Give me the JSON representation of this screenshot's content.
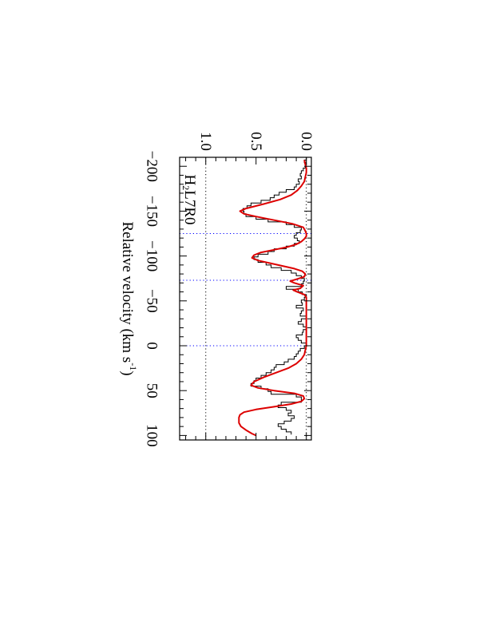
{
  "chart_data": {
    "type": "line",
    "orientation": "rotated 90 degrees clockwise",
    "xlabel": "Relative velocity (km s",
    "xlabel_superscript": "-1",
    "xlabel_suffix": ")",
    "ylabel": "",
    "annotation": "H",
    "annotation_subscript": "2",
    "annotation_suffix": "L7R0",
    "xlim": [
      -210,
      105
    ],
    "ylim": [
      -0.05,
      1.26
    ],
    "x_ticks": [
      {
        "value": -200,
        "label": "−200"
      },
      {
        "value": -150,
        "label": "−150"
      },
      {
        "value": -100,
        "label": "−100"
      },
      {
        "value": -50,
        "label": "−50"
      },
      {
        "value": 0,
        "label": "0"
      },
      {
        "value": 50,
        "label": "50"
      },
      {
        "value": 100,
        "label": "100"
      }
    ],
    "y_ticks": [
      {
        "value": 0.0,
        "label": "0.0"
      },
      {
        "value": 0.5,
        "label": "0.5"
      },
      {
        "value": 1.0,
        "label": "1.0"
      }
    ],
    "reference_lines": {
      "horizontal": [
        0.0,
        1.0
      ],
      "vertical": [
        -125,
        -73,
        0
      ],
      "horizontal_color": "#000000",
      "vertical_color": "#0000ff"
    },
    "series": [
      {
        "style": "histogram",
        "color": "#000000",
        "x": [
          -210,
          -207,
          -204,
          -201,
          -198,
          -195,
          -192,
          -189,
          -186,
          -183,
          -180,
          -177,
          -174,
          -171,
          -168,
          -165,
          -162,
          -159,
          -156,
          -153,
          -150,
          -147,
          -144,
          -141,
          -138,
          -135,
          -132,
          -129,
          -126,
          -123,
          -120,
          -117,
          -114,
          -111,
          -108,
          -105,
          -102,
          -99,
          -96,
          -93,
          -90,
          -87,
          -84,
          -81,
          -78,
          -75,
          -72,
          -69,
          -66,
          -63,
          -60,
          -57,
          -54,
          -51,
          -48,
          -45,
          -42,
          -39,
          -36,
          -33,
          -30,
          -27,
          -24,
          -21,
          -18,
          -15,
          -12,
          -9,
          -6,
          -3,
          0,
          3,
          6,
          9,
          12,
          15,
          18,
          21,
          24,
          27,
          30,
          33,
          36,
          39,
          42,
          45,
          48,
          51,
          54,
          57,
          60,
          63,
          66,
          69,
          72,
          75,
          78,
          81,
          84,
          87,
          90,
          93,
          96
        ],
        "values": [
          0.0,
          0.02,
          0.0,
          0.01,
          0.03,
          0.05,
          0.06,
          0.05,
          0.08,
          0.07,
          0.1,
          0.12,
          0.2,
          0.27,
          0.32,
          0.36,
          0.45,
          0.55,
          0.59,
          0.63,
          0.62,
          0.6,
          0.5,
          0.38,
          0.2,
          0.12,
          0.05,
          0.06,
          0.1,
          0.12,
          0.09,
          0.07,
          0.12,
          0.2,
          0.32,
          0.38,
          0.48,
          0.52,
          0.48,
          0.4,
          0.35,
          0.25,
          0.15,
          0.1,
          0.05,
          0.02,
          0.03,
          0.05,
          0.2,
          0.08,
          0.04,
          0.0,
          0.02,
          0.05,
          0.04,
          0.1,
          0.03,
          0.05,
          0.06,
          0.0,
          0.05,
          0.08,
          0.03,
          0.0,
          0.03,
          0.04,
          0.1,
          0.08,
          0.05,
          0.0,
          0.02,
          0.06,
          0.08,
          0.1,
          0.12,
          0.18,
          0.22,
          0.3,
          0.32,
          0.35,
          0.4,
          0.45,
          0.5,
          0.52,
          0.55,
          0.45,
          0.38,
          0.35,
          0.1,
          0.05,
          0.05,
          0.25,
          0.28,
          0.2,
          0.15,
          0.18,
          0.12,
          0.15,
          0.22,
          0.28,
          0.25,
          0.2,
          0.15
        ]
      },
      {
        "style": "smooth",
        "color": "#dd0000",
        "x": [
          -207,
          -202,
          -198,
          -193,
          -188,
          -183,
          -178,
          -173,
          -168,
          -163,
          -158,
          -153,
          -150,
          -147,
          -144,
          -140,
          -136,
          -132,
          -128,
          -125,
          -122,
          -119,
          -116,
          -113,
          -110,
          -107,
          -104,
          -101,
          -98,
          -95,
          -92,
          -89,
          -86,
          -83,
          -80,
          -77,
          -74,
          -72,
          -70,
          -67,
          -64,
          -62,
          -60,
          -57,
          -54,
          -50,
          -45,
          -40,
          -35,
          -30,
          -25,
          -20,
          -15,
          -10,
          -5,
          0,
          5,
          10,
          15,
          20,
          25,
          30,
          35,
          40,
          44,
          47,
          50,
          53,
          56,
          59,
          62,
          65,
          68,
          71,
          74,
          77,
          80,
          83,
          86,
          90,
          94,
          98,
          100
        ],
        "values": [
          0.02,
          0.01,
          0.0,
          0.0,
          0.01,
          0.02,
          0.05,
          0.09,
          0.15,
          0.26,
          0.42,
          0.6,
          0.66,
          0.62,
          0.5,
          0.32,
          0.14,
          0.03,
          0.01,
          0.0,
          0.0,
          0.02,
          0.05,
          0.1,
          0.19,
          0.32,
          0.45,
          0.52,
          0.54,
          0.48,
          0.36,
          0.24,
          0.12,
          0.04,
          0.01,
          0.02,
          0.1,
          0.16,
          0.12,
          0.03,
          0.06,
          0.13,
          0.09,
          0.02,
          0.0,
          0.0,
          0.0,
          0.0,
          0.0,
          0.0,
          0.0,
          0.0,
          0.0,
          0.0,
          0.0,
          0.0,
          0.01,
          0.02,
          0.05,
          0.1,
          0.18,
          0.3,
          0.42,
          0.52,
          0.55,
          0.48,
          0.32,
          0.12,
          0.03,
          0.02,
          0.05,
          0.15,
          0.32,
          0.5,
          0.62,
          0.66,
          0.67,
          0.67,
          0.67,
          0.65,
          0.6,
          0.54,
          0.5
        ]
      }
    ],
    "grid": false,
    "legend": "none"
  }
}
